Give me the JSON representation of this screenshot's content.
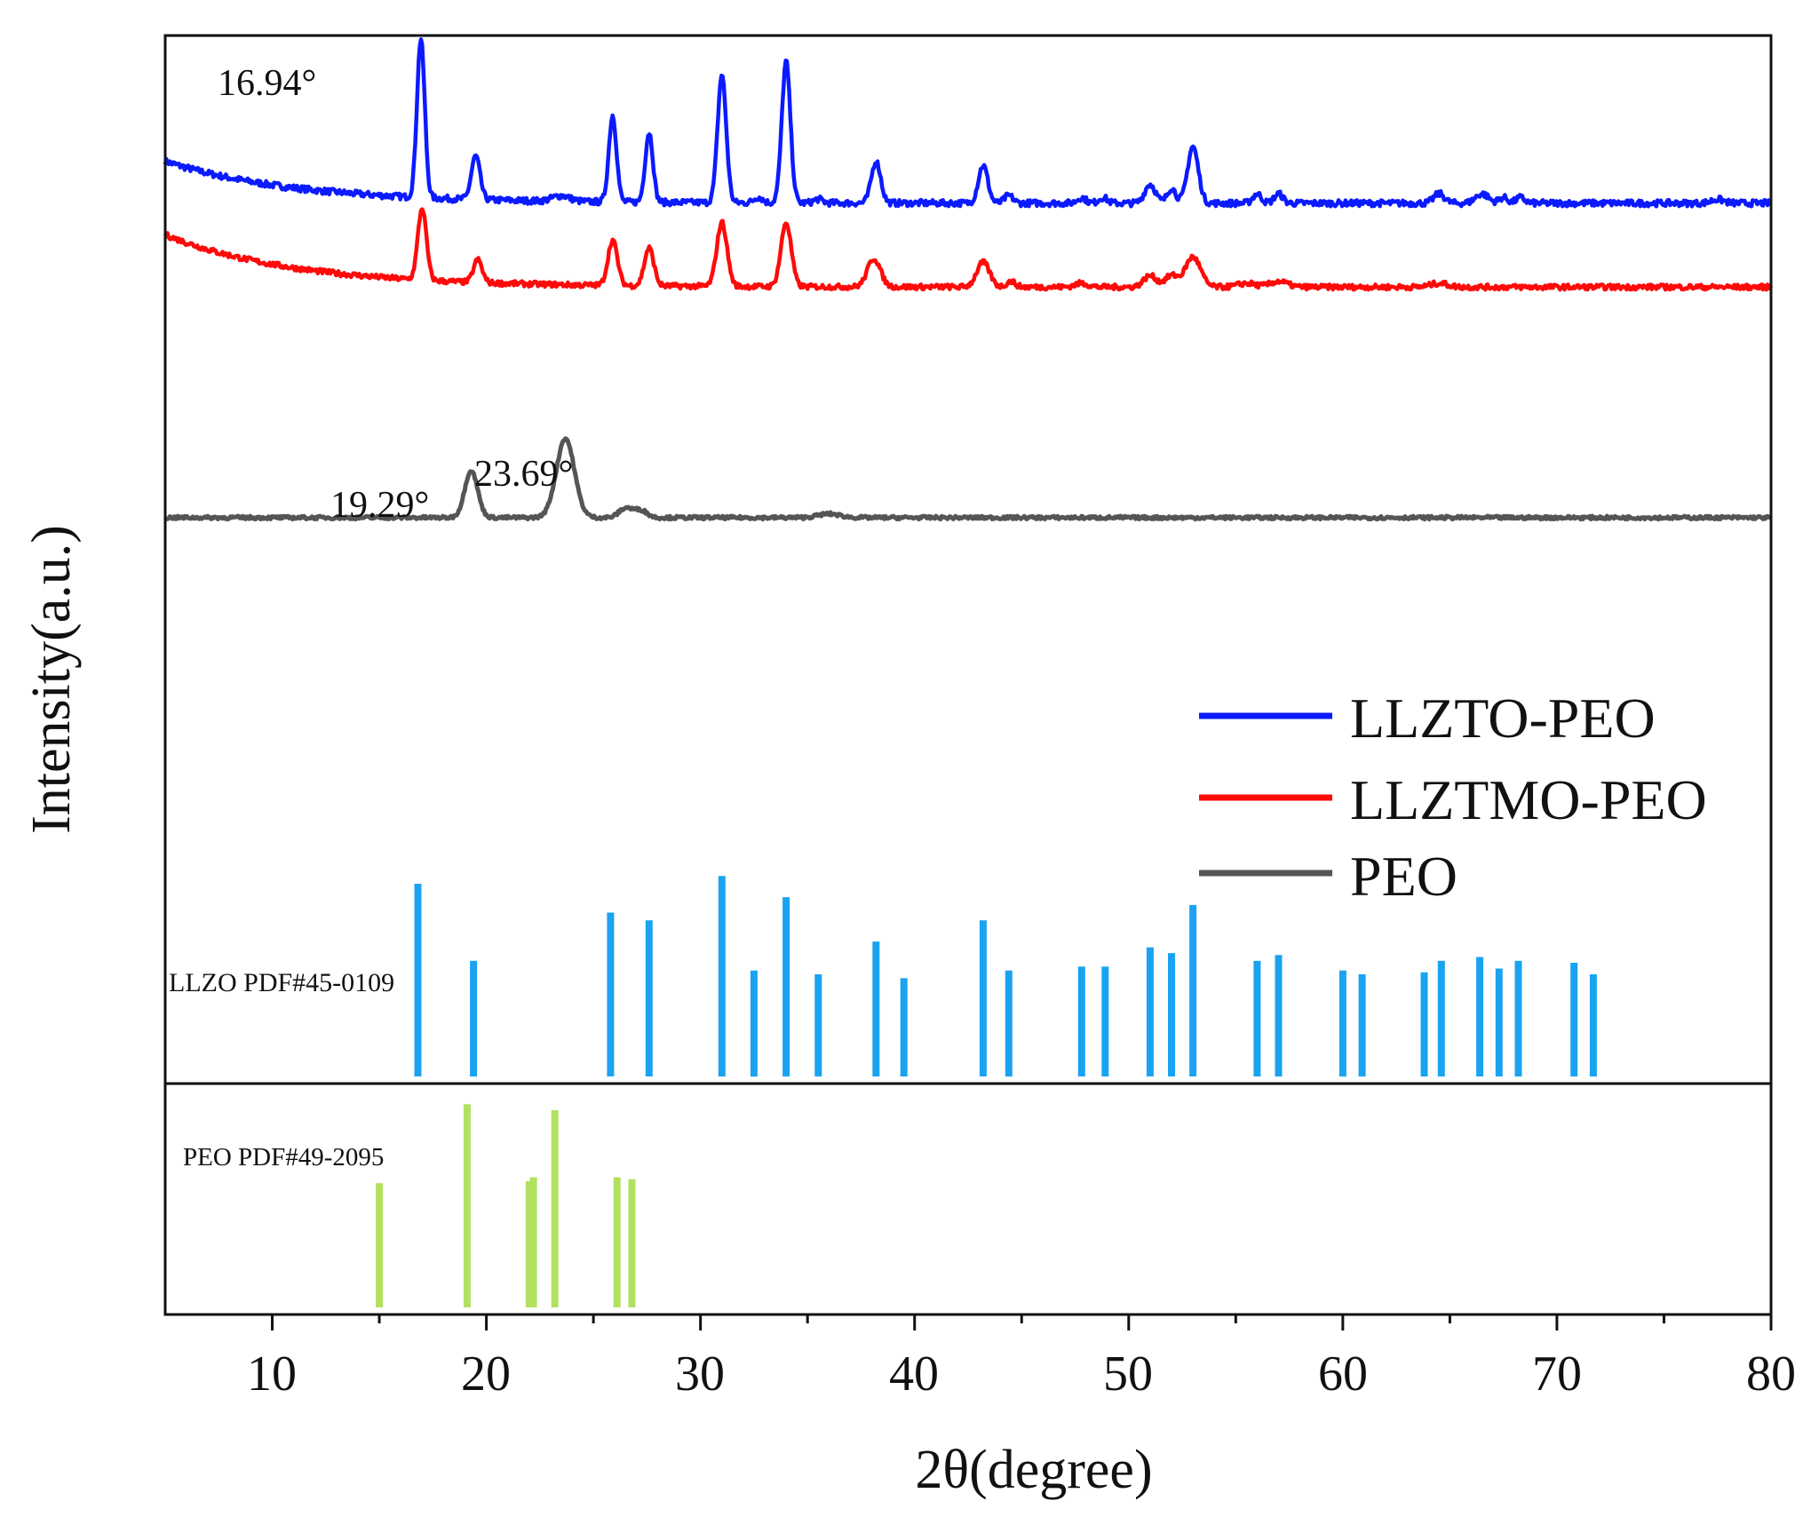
{
  "colors": {
    "llzto_peo": "#0b1aff",
    "llztmo_peo": "#ff0a0a",
    "peo": "#555555",
    "llzo_ref": "#1aa3f0",
    "peo_ref": "#b2e060",
    "axis": "#111111"
  },
  "chart_data": {
    "type": "line",
    "title": "",
    "xlabel": "2θ(degree)",
    "ylabel": "Intensity(a.u.)",
    "xlim": [
      5,
      80
    ],
    "xticks": [
      10,
      20,
      30,
      40,
      50,
      60,
      70,
      80
    ],
    "xtick_labels": [
      "10",
      "20",
      "30",
      "40",
      "50",
      "60",
      "70",
      "80"
    ],
    "grid": false,
    "legend_position": "middle-right",
    "series": [
      {
        "name": "LLZTO-PEO",
        "color_key": "llzto_peo",
        "baseline": 0.84,
        "drift": 0.04,
        "noise": 0.006,
        "peaks": [
          [
            16.94,
            0.84,
            0.18
          ],
          [
            19.5,
            0.23,
            0.2
          ],
          [
            23.5,
            0.03,
            0.4
          ],
          [
            25.9,
            0.46,
            0.18
          ],
          [
            27.6,
            0.37,
            0.18
          ],
          [
            31.0,
            0.68,
            0.2
          ],
          [
            32.7,
            0.03,
            0.2
          ],
          [
            34.0,
            0.75,
            0.2
          ],
          [
            35.5,
            0.02,
            0.2
          ],
          [
            38.2,
            0.22,
            0.22
          ],
          [
            43.2,
            0.2,
            0.22
          ],
          [
            44.4,
            0.04,
            0.2
          ],
          [
            47.8,
            0.03,
            0.2
          ],
          [
            48.8,
            0.03,
            0.2
          ],
          [
            51.0,
            0.1,
            0.25
          ],
          [
            52.0,
            0.08,
            0.2
          ],
          [
            53.0,
            0.3,
            0.25
          ],
          [
            56.0,
            0.05,
            0.2
          ],
          [
            57.0,
            0.05,
            0.2
          ],
          [
            64.5,
            0.05,
            0.25
          ],
          [
            66.5,
            0.05,
            0.3
          ],
          [
            67.5,
            0.03,
            0.2
          ],
          [
            68.3,
            0.03,
            0.2
          ],
          [
            77.5,
            0.02,
            0.3
          ]
        ]
      },
      {
        "name": "LLZTMO-PEO",
        "color_key": "llztmo_peo",
        "baseline": 0.76,
        "drift": 0.05,
        "noise": 0.005,
        "peaks": [
          [
            17.0,
            0.38,
            0.2
          ],
          [
            19.6,
            0.12,
            0.2
          ],
          [
            25.9,
            0.24,
            0.22
          ],
          [
            27.6,
            0.2,
            0.22
          ],
          [
            31.0,
            0.34,
            0.24
          ],
          [
            34.0,
            0.34,
            0.24
          ],
          [
            38.1,
            0.15,
            0.3
          ],
          [
            43.2,
            0.13,
            0.3
          ],
          [
            44.5,
            0.03,
            0.2
          ],
          [
            47.8,
            0.02,
            0.3
          ],
          [
            51.0,
            0.06,
            0.3
          ],
          [
            52.0,
            0.06,
            0.3
          ],
          [
            53.0,
            0.16,
            0.35
          ],
          [
            55.5,
            0.02,
            0.4
          ],
          [
            57.0,
            0.03,
            0.4
          ],
          [
            64.5,
            0.02,
            0.4
          ]
        ]
      },
      {
        "name": "PEO",
        "color_key": "peo",
        "baseline": 0.54,
        "drift": 0.0,
        "noise": 0.003,
        "peaks": [
          [
            19.29,
            0.25,
            0.3
          ],
          [
            23.69,
            0.42,
            0.42
          ],
          [
            26.5,
            0.05,
            0.3
          ],
          [
            27.2,
            0.04,
            0.3
          ],
          [
            36.0,
            0.02,
            0.5
          ]
        ]
      }
    ],
    "annotations": [
      {
        "text": "16.94°",
        "x": 16.94,
        "series": "LLZTO-PEO"
      },
      {
        "text": "19.29°",
        "x": 19.29,
        "series": "PEO"
      },
      {
        "text": "23.69°",
        "x": 23.69,
        "series": "PEO"
      }
    ],
    "references": [
      {
        "name": "LLZO PDF#45-0109",
        "color_key": "llzo_ref",
        "lines": [
          [
            16.8,
            1.0
          ],
          [
            19.4,
            0.6
          ],
          [
            25.8,
            0.85
          ],
          [
            27.6,
            0.81
          ],
          [
            31.0,
            1.04
          ],
          [
            32.5,
            0.55
          ],
          [
            34.0,
            0.93
          ],
          [
            35.5,
            0.53
          ],
          [
            38.2,
            0.7
          ],
          [
            39.5,
            0.51
          ],
          [
            43.2,
            0.81
          ],
          [
            44.4,
            0.55
          ],
          [
            47.8,
            0.57
          ],
          [
            48.9,
            0.57
          ],
          [
            51.0,
            0.67
          ],
          [
            52.0,
            0.64
          ],
          [
            53.0,
            0.89
          ],
          [
            56.0,
            0.6
          ],
          [
            57.0,
            0.63
          ],
          [
            60.0,
            0.55
          ],
          [
            60.9,
            0.53
          ],
          [
            63.8,
            0.54
          ],
          [
            64.6,
            0.6
          ],
          [
            66.4,
            0.62
          ],
          [
            67.3,
            0.56
          ],
          [
            68.2,
            0.6
          ],
          [
            70.8,
            0.59
          ],
          [
            71.7,
            0.53
          ]
        ]
      },
      {
        "name": "PEO PDF#49-2095",
        "color_key": "peo_ref",
        "lines": [
          [
            15.0,
            0.63
          ],
          [
            19.1,
            1.03
          ],
          [
            22.0,
            0.64
          ],
          [
            22.2,
            0.66
          ],
          [
            23.2,
            1.0
          ],
          [
            26.1,
            0.66
          ],
          [
            26.8,
            0.65
          ]
        ]
      }
    ]
  }
}
